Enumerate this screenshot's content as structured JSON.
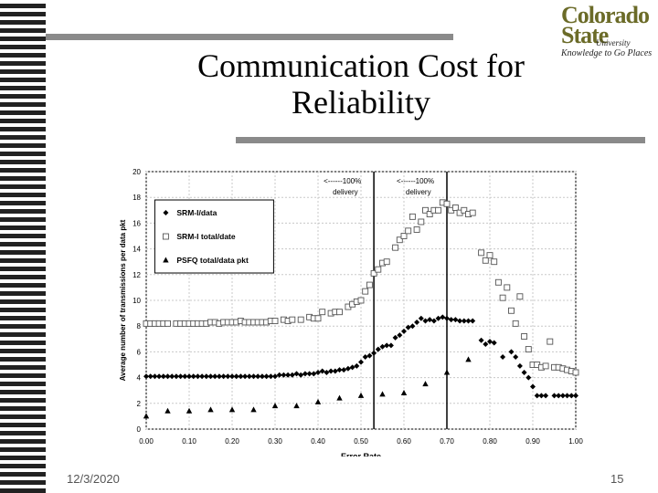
{
  "slide": {
    "title_line1": "Communication Cost for",
    "title_line2": "Reliability",
    "date": "12/3/2020",
    "page_number": "15"
  },
  "logo": {
    "line1": "Colorado",
    "line2": "State",
    "university": "University",
    "tagline": "Knowledge to Go Places"
  },
  "colors": {
    "stripe": "#222222",
    "rule": "#8a8a8a",
    "logo": "#6b6b28",
    "plot_bg": "#ffffff",
    "grid": "#c8c8c8"
  },
  "chart_data": {
    "type": "scatter",
    "xlabel": "Error Rate",
    "ylabel": "Average number of transmissions per data pkt",
    "xlim": [
      0,
      1
    ],
    "ylim": [
      0,
      20
    ],
    "x_ticks": [
      "0.00",
      "0.10",
      "0.20",
      "0.30",
      "0.40",
      "0.50",
      "0.60",
      "0.70",
      "0.80",
      "0.90",
      "1.00"
    ],
    "y_ticks": [
      "0",
      "2",
      "4",
      "6",
      "8",
      "10",
      "12",
      "14",
      "16",
      "18",
      "20"
    ],
    "grid": true,
    "legend_position": "top-left",
    "series": [
      {
        "name": "SRM-I/data",
        "marker": "diamond",
        "points": [
          [
            0.0,
            4.1
          ],
          [
            0.01,
            4.1
          ],
          [
            0.02,
            4.1
          ],
          [
            0.03,
            4.1
          ],
          [
            0.04,
            4.1
          ],
          [
            0.05,
            4.1
          ],
          [
            0.06,
            4.1
          ],
          [
            0.07,
            4.1
          ],
          [
            0.08,
            4.1
          ],
          [
            0.09,
            4.1
          ],
          [
            0.1,
            4.1
          ],
          [
            0.11,
            4.1
          ],
          [
            0.12,
            4.1
          ],
          [
            0.13,
            4.1
          ],
          [
            0.14,
            4.1
          ],
          [
            0.15,
            4.1
          ],
          [
            0.16,
            4.1
          ],
          [
            0.17,
            4.1
          ],
          [
            0.18,
            4.1
          ],
          [
            0.19,
            4.1
          ],
          [
            0.2,
            4.1
          ],
          [
            0.21,
            4.1
          ],
          [
            0.22,
            4.1
          ],
          [
            0.23,
            4.1
          ],
          [
            0.24,
            4.1
          ],
          [
            0.25,
            4.1
          ],
          [
            0.26,
            4.1
          ],
          [
            0.27,
            4.1
          ],
          [
            0.28,
            4.1
          ],
          [
            0.29,
            4.1
          ],
          [
            0.3,
            4.1
          ],
          [
            0.31,
            4.2
          ],
          [
            0.32,
            4.2
          ],
          [
            0.33,
            4.2
          ],
          [
            0.34,
            4.2
          ],
          [
            0.35,
            4.3
          ],
          [
            0.36,
            4.2
          ],
          [
            0.37,
            4.3
          ],
          [
            0.38,
            4.3
          ],
          [
            0.39,
            4.3
          ],
          [
            0.4,
            4.4
          ],
          [
            0.41,
            4.5
          ],
          [
            0.42,
            4.4
          ],
          [
            0.43,
            4.5
          ],
          [
            0.44,
            4.5
          ],
          [
            0.45,
            4.6
          ],
          [
            0.46,
            4.6
          ],
          [
            0.47,
            4.7
          ],
          [
            0.48,
            4.8
          ],
          [
            0.49,
            4.9
          ],
          [
            0.5,
            5.2
          ],
          [
            0.51,
            5.6
          ],
          [
            0.52,
            5.7
          ],
          [
            0.53,
            5.9
          ],
          [
            0.54,
            6.2
          ],
          [
            0.55,
            6.4
          ],
          [
            0.56,
            6.5
          ],
          [
            0.57,
            6.5
          ],
          [
            0.58,
            7.1
          ],
          [
            0.59,
            7.3
          ],
          [
            0.6,
            7.6
          ],
          [
            0.61,
            7.9
          ],
          [
            0.62,
            8.0
          ],
          [
            0.63,
            8.3
          ],
          [
            0.64,
            8.6
          ],
          [
            0.65,
            8.4
          ],
          [
            0.66,
            8.5
          ],
          [
            0.67,
            8.4
          ],
          [
            0.68,
            8.6
          ],
          [
            0.69,
            8.7
          ],
          [
            0.7,
            8.6
          ],
          [
            0.71,
            8.5
          ],
          [
            0.72,
            8.5
          ],
          [
            0.73,
            8.4
          ],
          [
            0.74,
            8.4
          ],
          [
            0.75,
            8.4
          ],
          [
            0.76,
            8.4
          ],
          [
            0.78,
            6.9
          ],
          [
            0.79,
            6.6
          ],
          [
            0.8,
            6.8
          ],
          [
            0.81,
            6.7
          ],
          [
            0.83,
            5.6
          ],
          [
            0.85,
            6.0
          ],
          [
            0.86,
            5.6
          ],
          [
            0.87,
            4.9
          ],
          [
            0.88,
            4.4
          ],
          [
            0.89,
            4.0
          ],
          [
            0.9,
            3.3
          ],
          [
            0.91,
            2.6
          ],
          [
            0.92,
            2.6
          ],
          [
            0.93,
            2.6
          ],
          [
            0.95,
            2.6
          ],
          [
            0.96,
            2.6
          ],
          [
            0.97,
            2.6
          ],
          [
            0.98,
            2.6
          ],
          [
            0.99,
            2.6
          ],
          [
            1.0,
            2.6
          ]
        ]
      },
      {
        "name": "SRM-I total/date",
        "marker": "open-square",
        "points": [
          [
            0.0,
            8.2
          ],
          [
            0.01,
            8.2
          ],
          [
            0.02,
            8.2
          ],
          [
            0.03,
            8.2
          ],
          [
            0.04,
            8.2
          ],
          [
            0.05,
            8.2
          ],
          [
            0.07,
            8.2
          ],
          [
            0.08,
            8.2
          ],
          [
            0.09,
            8.2
          ],
          [
            0.1,
            8.2
          ],
          [
            0.11,
            8.2
          ],
          [
            0.12,
            8.2
          ],
          [
            0.13,
            8.2
          ],
          [
            0.14,
            8.2
          ],
          [
            0.15,
            8.3
          ],
          [
            0.16,
            8.3
          ],
          [
            0.17,
            8.2
          ],
          [
            0.18,
            8.3
          ],
          [
            0.19,
            8.3
          ],
          [
            0.2,
            8.3
          ],
          [
            0.21,
            8.3
          ],
          [
            0.22,
            8.4
          ],
          [
            0.23,
            8.3
          ],
          [
            0.24,
            8.3
          ],
          [
            0.25,
            8.3
          ],
          [
            0.26,
            8.3
          ],
          [
            0.27,
            8.3
          ],
          [
            0.28,
            8.3
          ],
          [
            0.29,
            8.4
          ],
          [
            0.3,
            8.4
          ],
          [
            0.32,
            8.5
          ],
          [
            0.33,
            8.4
          ],
          [
            0.34,
            8.5
          ],
          [
            0.36,
            8.5
          ],
          [
            0.38,
            8.7
          ],
          [
            0.39,
            8.6
          ],
          [
            0.4,
            8.6
          ],
          [
            0.41,
            9.1
          ],
          [
            0.43,
            9.0
          ],
          [
            0.44,
            9.1
          ],
          [
            0.45,
            9.1
          ],
          [
            0.47,
            9.5
          ],
          [
            0.48,
            9.7
          ],
          [
            0.49,
            9.9
          ],
          [
            0.5,
            10.0
          ],
          [
            0.51,
            10.7
          ],
          [
            0.52,
            11.2
          ],
          [
            0.53,
            12.1
          ],
          [
            0.54,
            12.4
          ],
          [
            0.55,
            12.9
          ],
          [
            0.56,
            13.0
          ],
          [
            0.58,
            14.1
          ],
          [
            0.59,
            14.7
          ],
          [
            0.6,
            15.0
          ],
          [
            0.61,
            15.4
          ],
          [
            0.62,
            16.5
          ],
          [
            0.63,
            15.5
          ],
          [
            0.64,
            16.1
          ],
          [
            0.65,
            17.0
          ],
          [
            0.66,
            16.7
          ],
          [
            0.67,
            17.0
          ],
          [
            0.68,
            17.0
          ],
          [
            0.69,
            17.6
          ],
          [
            0.7,
            17.5
          ],
          [
            0.71,
            17.0
          ],
          [
            0.72,
            17.2
          ],
          [
            0.73,
            16.8
          ],
          [
            0.74,
            17.0
          ],
          [
            0.75,
            16.7
          ],
          [
            0.76,
            16.8
          ],
          [
            0.78,
            13.7
          ],
          [
            0.79,
            13.1
          ],
          [
            0.8,
            13.5
          ],
          [
            0.81,
            13.0
          ],
          [
            0.82,
            11.4
          ],
          [
            0.83,
            10.2
          ],
          [
            0.84,
            11.0
          ],
          [
            0.85,
            9.2
          ],
          [
            0.86,
            8.2
          ],
          [
            0.87,
            10.3
          ],
          [
            0.88,
            7.2
          ],
          [
            0.89,
            6.2
          ],
          [
            0.9,
            5.0
          ],
          [
            0.91,
            5.0
          ],
          [
            0.92,
            4.8
          ],
          [
            0.93,
            4.9
          ],
          [
            0.94,
            6.8
          ],
          [
            0.95,
            4.8
          ],
          [
            0.96,
            4.8
          ],
          [
            0.97,
            4.7
          ],
          [
            0.98,
            4.6
          ],
          [
            0.99,
            4.5
          ],
          [
            1.0,
            4.4
          ]
        ]
      },
      {
        "name": "PSFQ total/data pkt",
        "marker": "triangle",
        "points": [
          [
            0.0,
            1.0
          ],
          [
            0.05,
            1.4
          ],
          [
            0.1,
            1.4
          ],
          [
            0.15,
            1.5
          ],
          [
            0.2,
            1.5
          ],
          [
            0.25,
            1.5
          ],
          [
            0.3,
            1.8
          ],
          [
            0.35,
            1.8
          ],
          [
            0.4,
            2.1
          ],
          [
            0.45,
            2.4
          ],
          [
            0.5,
            2.6
          ],
          [
            0.55,
            2.7
          ],
          [
            0.6,
            2.8
          ],
          [
            0.65,
            3.5
          ],
          [
            0.7,
            4.4
          ],
          [
            0.75,
            5.4
          ]
        ]
      }
    ],
    "annotations": [
      {
        "line1": "<------100%",
        "line2": "delivery",
        "x": 0.53
      },
      {
        "line1": "<------100%",
        "line2": "delivery",
        "x": 0.7
      }
    ]
  }
}
